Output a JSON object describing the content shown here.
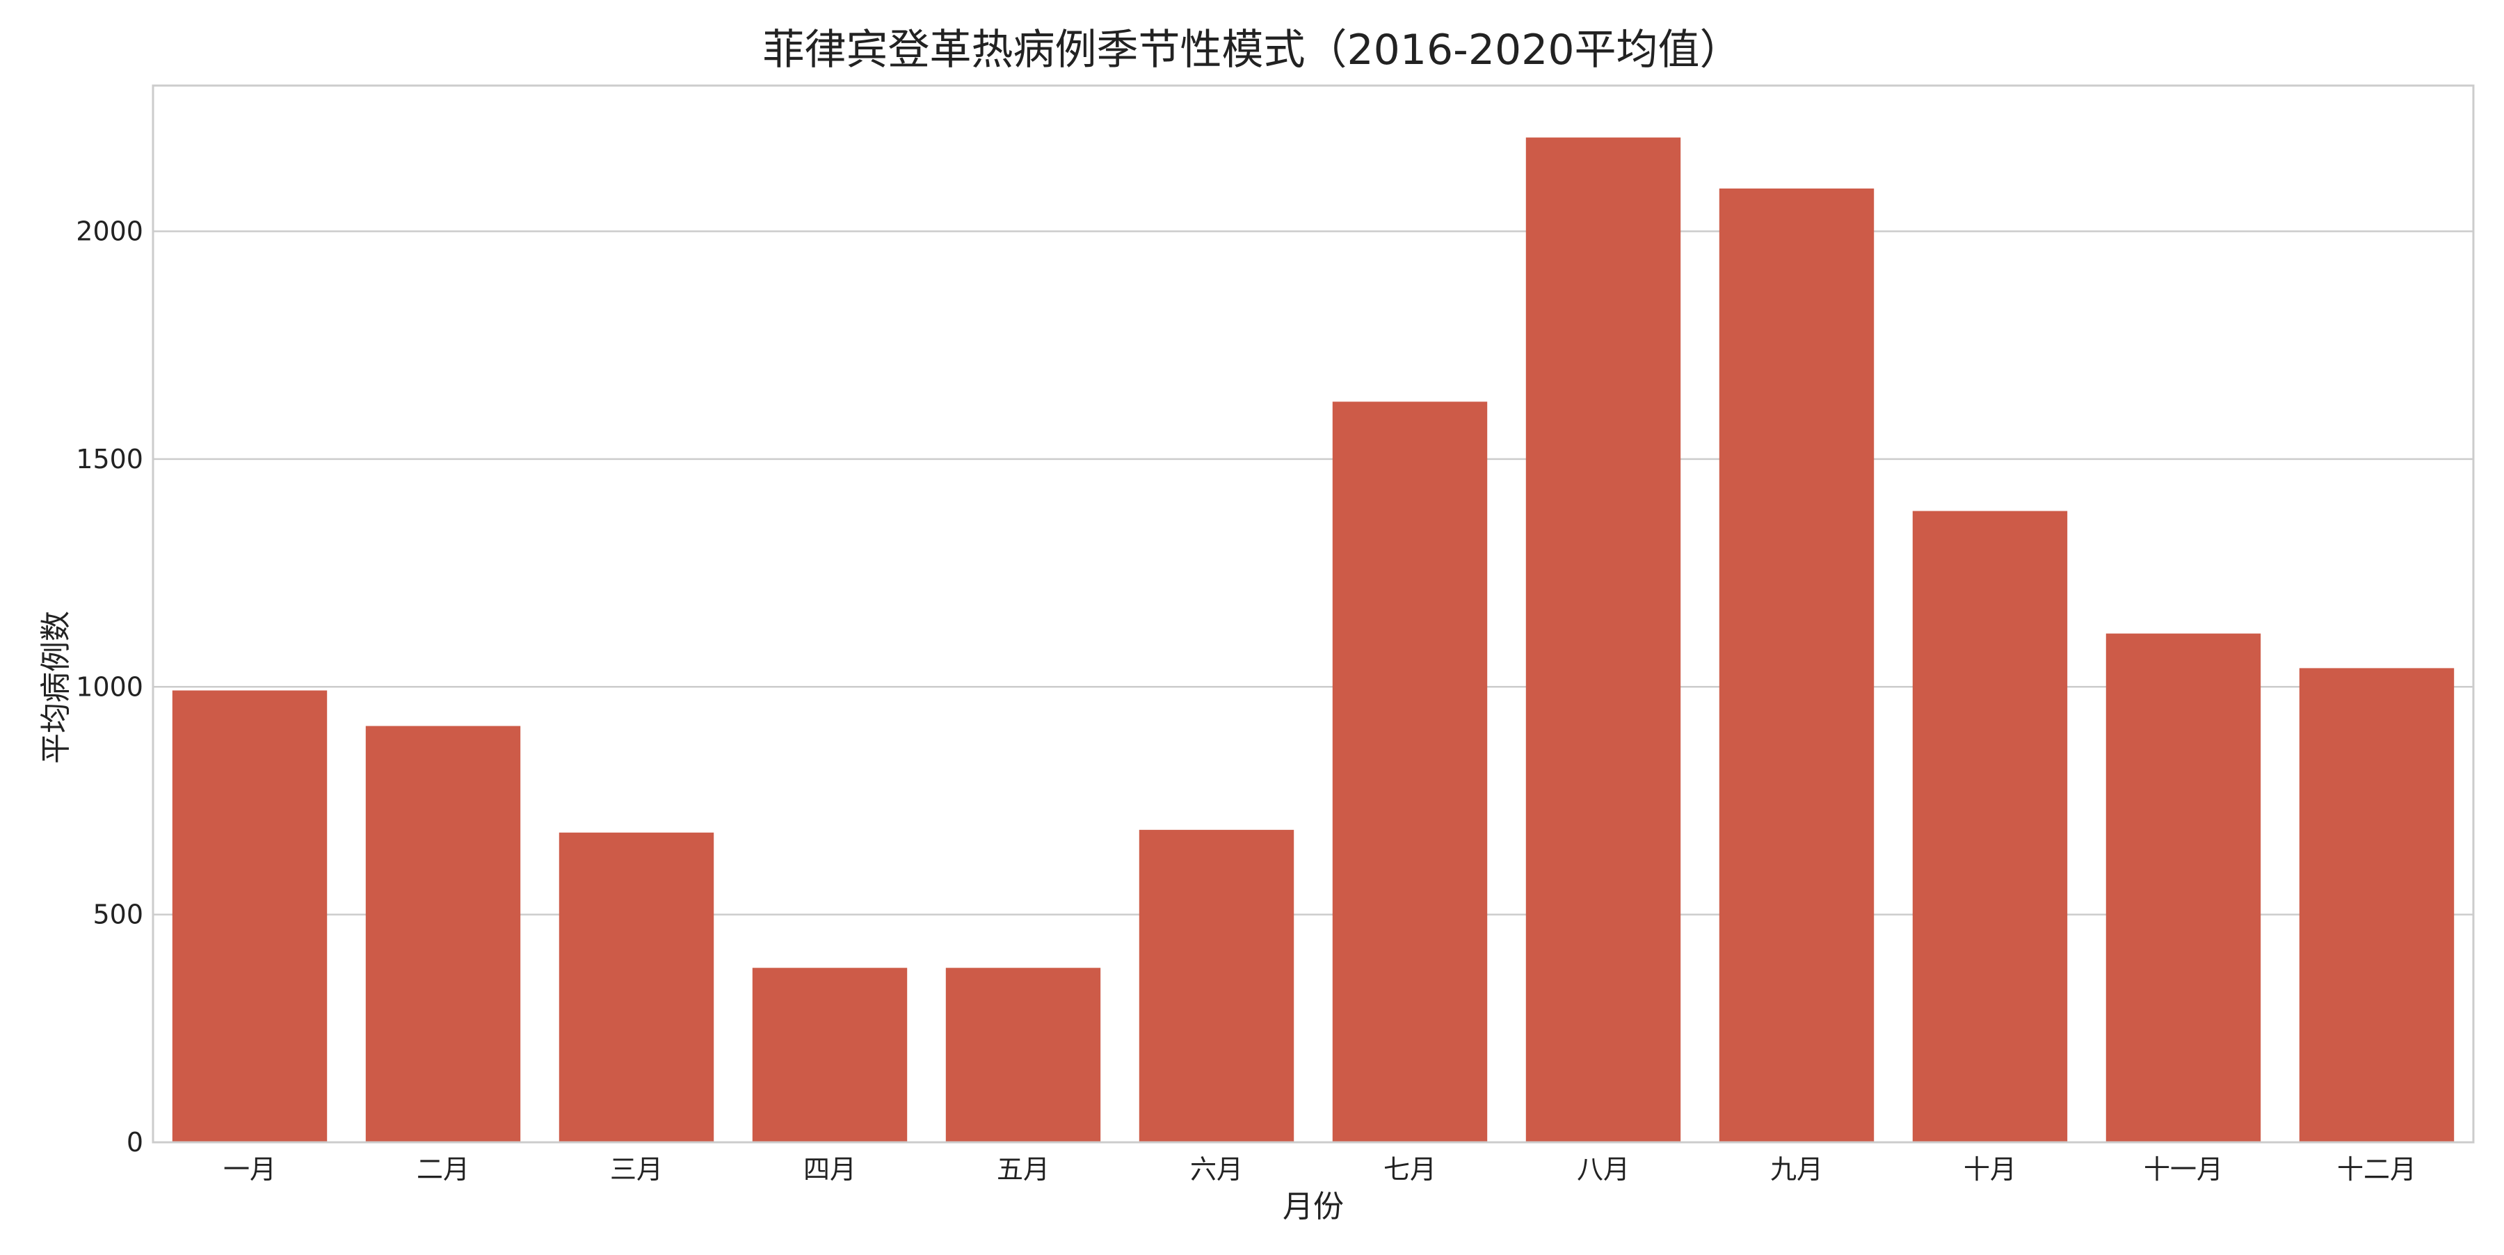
{
  "chart_data": {
    "type": "bar",
    "title": "菲律宾登革热病例季节性模式（2016-2020平均值）",
    "xlabel": "月份",
    "ylabel": "平均病例数",
    "categories": [
      "一月",
      "二月",
      "三月",
      "四月",
      "五月",
      "六月",
      "七月",
      "八月",
      "九月",
      "十月",
      "十一月",
      "十二月"
    ],
    "series": [
      {
        "values": [
          992,
          914,
          680,
          383,
          383,
          686,
          1626,
          2206,
          2094,
          1386,
          1117,
          1041
        ]
      }
    ],
    "ylim": [
      0,
      2320
    ],
    "yticks": [
      0,
      500,
      1000,
      1500,
      2000
    ],
    "grid": true,
    "legend": "none",
    "colors": {
      "bar": "#cd5b48",
      "grid": "#cccccc",
      "frame": "#cccccc",
      "text": "#222222"
    }
  }
}
